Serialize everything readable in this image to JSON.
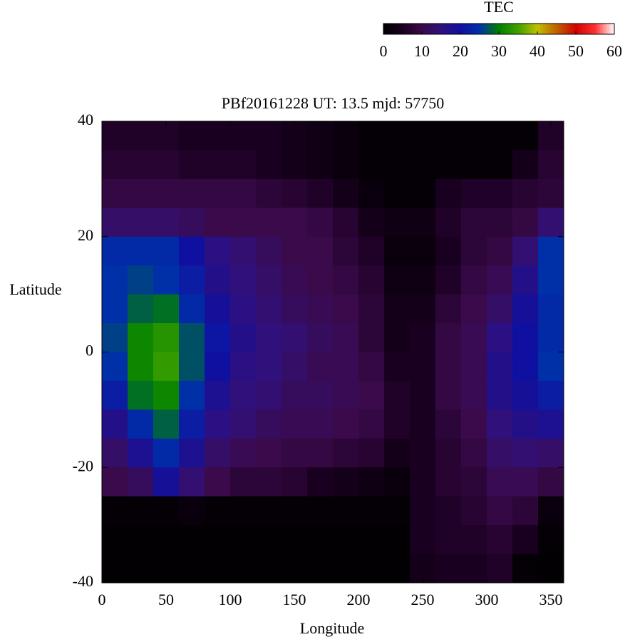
{
  "chart_data": {
    "type": "heatmap",
    "title": "PBf20161228  UT: 13.5  mjd: 57750",
    "x_label": "Longitude",
    "y_label": "Latitude",
    "colorbar_label": "TEC",
    "x": [
      10,
      30,
      50,
      70,
      90,
      110,
      130,
      150,
      170,
      190,
      210,
      230,
      250,
      270,
      290,
      310,
      330,
      350
    ],
    "y": [
      37.5,
      32.5,
      27.5,
      22.5,
      17.5,
      12.5,
      7.5,
      2.5,
      -2.5,
      -7.5,
      -12.5,
      -17.5,
      -22.5,
      -27.5,
      -32.5,
      -37.5
    ],
    "values": [
      [
        6,
        6,
        6,
        5,
        5,
        5,
        5,
        4,
        3,
        2,
        1,
        1,
        1,
        1,
        1,
        1,
        1,
        6
      ],
      [
        7,
        7,
        7,
        6,
        6,
        6,
        5,
        4,
        3,
        2,
        1,
        1,
        1,
        1,
        1,
        1,
        4,
        7
      ],
      [
        9,
        9,
        9,
        9,
        9,
        9,
        8,
        7,
        6,
        4,
        2,
        1,
        1,
        5,
        6,
        6,
        7,
        8
      ],
      [
        13,
        13,
        13,
        12,
        10,
        10,
        10,
        10,
        9,
        7,
        4,
        3,
        3,
        6,
        8,
        8,
        9,
        14
      ],
      [
        24,
        24,
        24,
        20,
        16,
        14,
        12,
        10,
        10,
        8,
        6,
        2,
        2,
        5,
        8,
        9,
        14,
        25
      ],
      [
        25,
        26,
        25,
        22,
        17,
        15,
        13,
        11,
        10,
        9,
        7,
        3,
        3,
        6,
        9,
        11,
        17,
        25
      ],
      [
        25,
        28,
        29,
        24,
        19,
        16,
        14,
        12,
        11,
        10,
        8,
        4,
        4,
        8,
        10,
        13,
        19,
        24
      ],
      [
        26,
        31,
        33,
        27,
        21,
        17,
        15,
        14,
        12,
        11,
        8,
        4,
        5,
        9,
        11,
        16,
        20,
        24
      ],
      [
        25,
        31,
        34,
        27,
        20,
        16,
        15,
        13,
        11,
        11,
        9,
        5,
        5,
        9,
        11,
        17,
        20,
        25
      ],
      [
        22,
        29,
        31,
        25,
        18,
        15,
        14,
        12,
        12,
        11,
        10,
        6,
        5,
        9,
        11,
        17,
        19,
        22
      ],
      [
        17,
        24,
        28,
        22,
        16,
        14,
        12,
        11,
        11,
        10,
        9,
        6,
        5,
        8,
        10,
        15,
        17,
        18
      ],
      [
        13,
        18,
        24,
        18,
        13,
        11,
        10,
        9,
        9,
        8,
        7,
        4,
        5,
        7,
        9,
        13,
        14,
        13
      ],
      [
        10,
        12,
        19,
        14,
        10,
        8,
        8,
        7,
        5,
        4,
        3,
        2,
        5,
        7,
        8,
        11,
        11,
        9
      ],
      [
        1,
        1,
        1,
        2,
        1,
        1,
        1,
        1,
        1,
        1,
        1,
        1,
        5,
        6,
        7,
        9,
        8,
        2
      ],
      [
        0.5,
        0.5,
        0.5,
        0.5,
        0.5,
        0.5,
        0.5,
        0.5,
        0.5,
        0.5,
        0.5,
        0.5,
        5,
        6,
        6,
        7,
        5,
        1
      ],
      [
        0.5,
        0.5,
        0.5,
        0.5,
        0.5,
        0.5,
        0.5,
        0.5,
        0.5,
        0.5,
        0.5,
        0.5,
        4,
        5,
        5,
        6,
        1,
        0.5
      ]
    ],
    "xlim": [
      0,
      360
    ],
    "xticks": [
      0,
      50,
      100,
      150,
      200,
      250,
      300,
      350
    ],
    "ylim": [
      -40,
      40
    ],
    "yticks": [
      -40,
      -20,
      0,
      20,
      40
    ],
    "zlim": [
      0,
      60
    ],
    "zticks": [
      0,
      10,
      20,
      30,
      40,
      50,
      60
    ],
    "colors": [
      "#000000",
      "#1a0020",
      "#3a0a4a",
      "#30107a",
      "#1010a0",
      "#0030a8",
      "#008000",
      "#40a000",
      "#c0c000",
      "#c06000",
      "#d00000",
      "#ff3030",
      "#ffffff"
    ]
  }
}
